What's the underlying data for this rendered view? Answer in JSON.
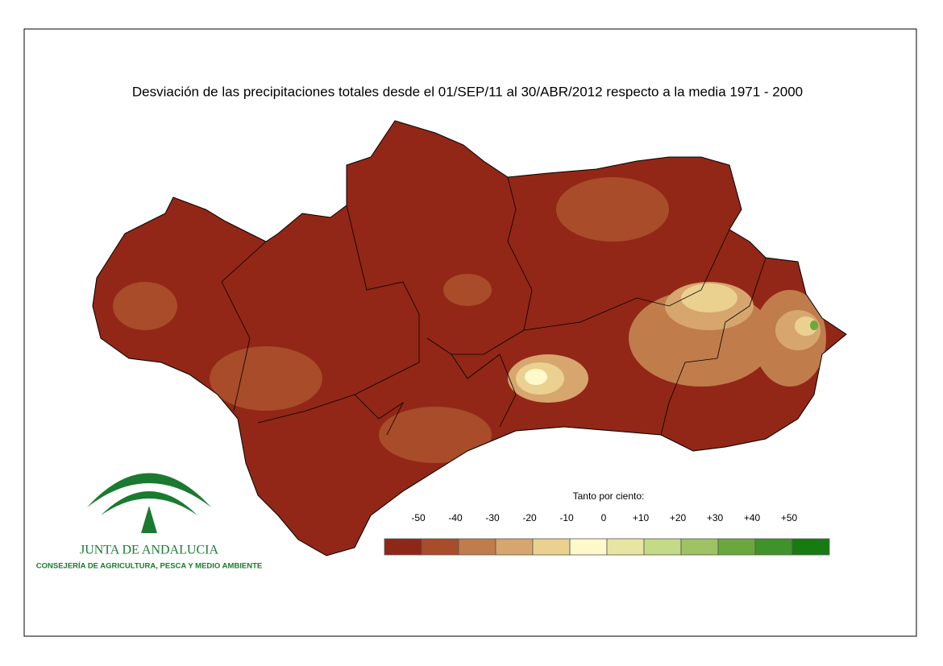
{
  "title": "Desviación de las precipitaciones totales desde el 01/SEP/11 al 30/ABR/2012 respecto a la media 1971 - 2000",
  "legend": {
    "title": "Tanto por ciento:",
    "labels": [
      "-50",
      "-40",
      "-30",
      "-20",
      "-10",
      "0",
      "+10",
      "+20",
      "+30",
      "+40",
      "+50"
    ],
    "colors": [
      "#8f2717",
      "#a84c2a",
      "#c17c4c",
      "#d6a66e",
      "#ead190",
      "#fdf9cb",
      "#e6e6a2",
      "#c4da86",
      "#9ec264",
      "#6aa83e",
      "#3f932a",
      "#177b12"
    ]
  },
  "logo": {
    "name": "JUNTA DE ANDALUCIA",
    "department": "CONSEJERÍA DE AGRICULTURA, PESCA Y MEDIO AMBIENTE"
  }
}
